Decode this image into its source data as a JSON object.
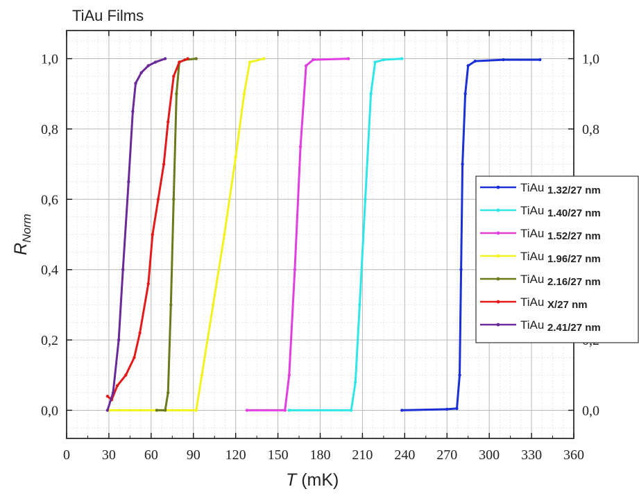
{
  "chart_data": {
    "type": "line",
    "title": "TiAu Films",
    "xlabel_italic": "T",
    "xlabel_unit": " (mK)",
    "ylabel_main": "R",
    "ylabel_sub": "Norm",
    "xlim": [
      0,
      360
    ],
    "ylim": [
      -0.08,
      1.08
    ],
    "xticks": [
      0,
      30,
      60,
      90,
      120,
      150,
      180,
      210,
      240,
      270,
      300,
      330,
      360
    ],
    "xtick_labels": [
      "0",
      "30",
      "60",
      "90",
      "120",
      "150",
      "180",
      "210",
      "240",
      "270",
      "300",
      "330",
      "360"
    ],
    "yticks": [
      0,
      0.2,
      0.4,
      0.6,
      0.8,
      1.0
    ],
    "ytick_labels": [
      "0,0",
      "0,2",
      "0,4",
      "0,6",
      "0,8",
      "1,0"
    ],
    "grid": true,
    "legend_position": "right",
    "series": [
      {
        "name": "TiAu",
        "name_suffix": "1.32/27 nm",
        "color": "#1a2fd6",
        "points": [
          [
            238,
            0.0
          ],
          [
            270,
            0.003
          ],
          [
            277,
            0.005
          ],
          [
            279,
            0.1
          ],
          [
            280,
            0.4
          ],
          [
            281,
            0.7
          ],
          [
            283,
            0.9
          ],
          [
            285,
            0.98
          ],
          [
            290,
            0.993
          ],
          [
            310,
            0.997
          ],
          [
            336,
            0.997
          ]
        ]
      },
      {
        "name": "TiAu",
        "name_suffix": "1.40/27 nm",
        "color": "#2ee6e6",
        "points": [
          [
            158,
            0.0
          ],
          [
            202,
            0.0
          ],
          [
            205,
            0.08
          ],
          [
            208,
            0.3
          ],
          [
            212,
            0.6
          ],
          [
            216,
            0.9
          ],
          [
            219,
            0.99
          ],
          [
            225,
            0.997
          ],
          [
            238,
            1.0
          ]
        ]
      },
      {
        "name": "TiAu",
        "name_suffix": "1.52/27 nm",
        "color": "#e03ee0",
        "points": [
          [
            128,
            0.0
          ],
          [
            155,
            0.0
          ],
          [
            158,
            0.1
          ],
          [
            162,
            0.4
          ],
          [
            166,
            0.75
          ],
          [
            170,
            0.98
          ],
          [
            175,
            0.997
          ],
          [
            200,
            1.0
          ]
        ]
      },
      {
        "name": "TiAu",
        "name_suffix": "1.96/27 nm",
        "color": "#f2f21c",
        "points": [
          [
            30,
            0.0
          ],
          [
            92,
            0.0
          ],
          [
            96,
            0.1
          ],
          [
            104,
            0.3
          ],
          [
            112,
            0.5
          ],
          [
            120,
            0.72
          ],
          [
            126,
            0.9
          ],
          [
            130,
            0.99
          ],
          [
            140,
            1.0
          ]
        ]
      },
      {
        "name": "TiAu",
        "name_suffix": "2.16/27 nm",
        "color": "#6b7a1a",
        "points": [
          [
            64,
            0.0
          ],
          [
            70,
            0.0
          ],
          [
            72,
            0.05
          ],
          [
            74,
            0.3
          ],
          [
            76,
            0.6
          ],
          [
            78,
            0.9
          ],
          [
            80,
            0.99
          ],
          [
            84,
            0.997
          ],
          [
            92,
            1.0
          ]
        ]
      },
      {
        "name": "TiAu",
        "name_suffix": "X/27 nm",
        "color": "#e41a1a",
        "points": [
          [
            29,
            0.04
          ],
          [
            32,
            0.03
          ],
          [
            36,
            0.07
          ],
          [
            42,
            0.1
          ],
          [
            48,
            0.15
          ],
          [
            52,
            0.22
          ],
          [
            58,
            0.36
          ],
          [
            61,
            0.5
          ],
          [
            65,
            0.6
          ],
          [
            69,
            0.7
          ],
          [
            72,
            0.82
          ],
          [
            76,
            0.95
          ],
          [
            80,
            0.99
          ],
          [
            86,
            1.0
          ]
        ]
      },
      {
        "name": "TiAu",
        "name_suffix": "2.41/27 nm",
        "color": "#6a2a9a",
        "points": [
          [
            29,
            0.0
          ],
          [
            33,
            0.05
          ],
          [
            37,
            0.2
          ],
          [
            40,
            0.4
          ],
          [
            44,
            0.65
          ],
          [
            47,
            0.85
          ],
          [
            49,
            0.93
          ],
          [
            53,
            0.96
          ],
          [
            58,
            0.98
          ],
          [
            63,
            0.99
          ],
          [
            70,
            1.0
          ]
        ]
      }
    ]
  }
}
